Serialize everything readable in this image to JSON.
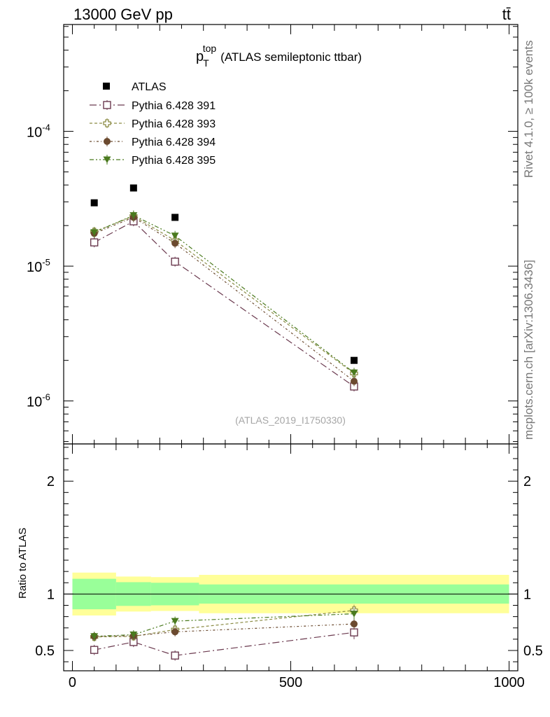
{
  "header": {
    "left": "13000 GeV pp",
    "right": "tt̄"
  },
  "side_labels": {
    "rivet": "Rivet 4.1.0, ≥ 100k events",
    "mcplots": "mcplots.cern.ch [arXiv:1306.3436]"
  },
  "chart_data": {
    "type": "scatter",
    "title_main": "p",
    "title_sup": "top",
    "title_sub": "T",
    "title_rest": "(ATLAS semileptonic ttbar)",
    "watermark": "(ATLAS_2019_I1750330)",
    "x_ticks": [
      0,
      500,
      1000
    ],
    "xlim": [
      -20,
      1020
    ],
    "main_panel": {
      "yscale": "log",
      "ylim": [
        4.8e-07,
        0.00062
      ],
      "y_tick_labels": [
        {
          "value": 0.0001,
          "base": "10",
          "exp": "-4"
        },
        {
          "value": 1e-05,
          "base": "10",
          "exp": "-5"
        },
        {
          "value": 1e-06,
          "base": "10",
          "exp": "-6"
        }
      ]
    },
    "ratio_panel": {
      "ylabel": "Ratio to ATLAS",
      "ylim": [
        0.32,
        2.33
      ],
      "y_tick_labels": [
        "0.5",
        "1",
        "2"
      ],
      "y_tick_values": [
        0.5,
        1,
        2
      ],
      "bands": [
        {
          "x0": 0,
          "x1": 100,
          "inner": [
            0.865,
            1.135
          ],
          "outer": [
            0.81,
            1.19
          ]
        },
        {
          "x0": 100,
          "x1": 180,
          "inner": [
            0.895,
            1.105
          ],
          "outer": [
            0.845,
            1.155
          ]
        },
        {
          "x0": 180,
          "x1": 290,
          "inner": [
            0.9,
            1.1
          ],
          "outer": [
            0.85,
            1.15
          ]
        },
        {
          "x0": 290,
          "x1": 1000,
          "inner": [
            0.915,
            1.085
          ],
          "outer": [
            0.83,
            1.17
          ]
        }
      ]
    },
    "atlas": {
      "name": "ATLAS",
      "x": [
        50,
        140,
        235,
        645
      ],
      "y": [
        2.95e-05,
        3.8e-05,
        2.3e-05,
        2e-06
      ]
    },
    "series": [
      {
        "name": "Pythia 6.428 391",
        "color": "#6b3a4f",
        "marker": "open-square",
        "dash": "10,4,2,4",
        "x": [
          50,
          140,
          235,
          645
        ],
        "y": [
          1.5e-05,
          2.15e-05,
          1.08e-05,
          1.28e-06
        ],
        "ratio": [
          0.505,
          0.575,
          0.455,
          0.66
        ],
        "ratio_err": [
          0.045,
          0.045,
          0.045,
          0.06
        ]
      },
      {
        "name": "Pythia 6.428 393",
        "color": "#8c8c45",
        "marker": "open-plus",
        "dash": "4,3",
        "x": [
          50,
          140,
          235,
          645
        ],
        "y": [
          1.8e-05,
          2.35e-05,
          1.55e-05,
          1.6e-06
        ],
        "ratio": [
          0.62,
          0.625,
          0.685,
          0.855
        ],
        "ratio_err": [
          0.04,
          0.04,
          0.04,
          0.05
        ]
      },
      {
        "name": "Pythia 6.428 394",
        "color": "#6b4a2f",
        "marker": "filled-circle",
        "dash": "3,3,1,3",
        "x": [
          50,
          140,
          235,
          645
        ],
        "y": [
          1.75e-05,
          2.3e-05,
          1.48e-05,
          1.4e-06
        ],
        "ratio": [
          0.625,
          0.63,
          0.665,
          0.735
        ],
        "ratio_err": [
          0.04,
          0.04,
          0.04,
          0.05
        ]
      },
      {
        "name": "Pythia 6.428 395",
        "color": "#4a7a1e",
        "marker": "filled-triangle-down",
        "dash": "6,3,2,3,2,3",
        "x": [
          50,
          140,
          235,
          645
        ],
        "y": [
          1.78e-05,
          2.38e-05,
          1.68e-05,
          1.62e-06
        ],
        "ratio": [
          0.625,
          0.64,
          0.76,
          0.825
        ],
        "ratio_err": [
          0.04,
          0.04,
          0.04,
          0.05
        ]
      }
    ]
  }
}
